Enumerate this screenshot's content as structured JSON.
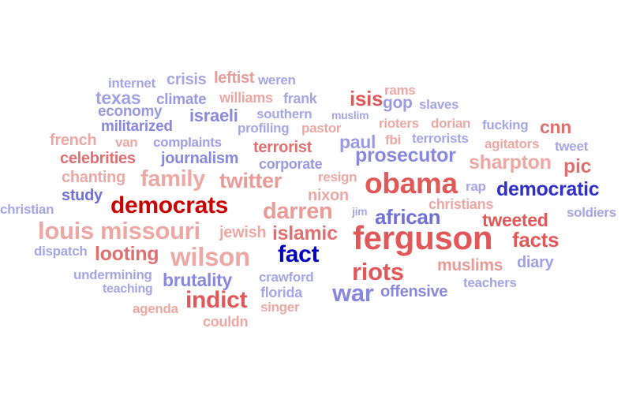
{
  "title": "",
  "colors": {
    "red_strong": "#c80000",
    "red_medium": "#e05858",
    "red_light": "#eda8a4",
    "blue_strong": "#0000c0",
    "blue_medium": "#5a5ad6",
    "blue_light": "#a6a6e6"
  },
  "words": [
    {
      "text": "internet",
      "color": "#a6a6e6"
    },
    {
      "text": "crisis",
      "color": "#a6a6e6"
    },
    {
      "text": "leftist",
      "color": "#e89c98"
    },
    {
      "text": "weren",
      "color": "#a6a6e6"
    },
    {
      "text": "rams",
      "color": "#eda8a4"
    },
    {
      "text": "texas",
      "color": "#a0a0e4"
    },
    {
      "text": "climate",
      "color": "#9a9ae0"
    },
    {
      "text": "williams",
      "color": "#eda8a4"
    },
    {
      "text": "frank",
      "color": "#a6a6e6"
    },
    {
      "text": "isis",
      "color": "#e05858"
    },
    {
      "text": "gop",
      "color": "#9a9ae0"
    },
    {
      "text": "slaves",
      "color": "#a6a6e6"
    },
    {
      "text": "economy",
      "color": "#9a9ae0"
    },
    {
      "text": "israeli",
      "color": "#8888dc"
    },
    {
      "text": "southern",
      "color": "#a6a6e6"
    },
    {
      "text": "muslim",
      "color": "#a6a6e6"
    },
    {
      "text": "militarized",
      "color": "#8888dc"
    },
    {
      "text": "profiling",
      "color": "#a6a6e6"
    },
    {
      "text": "pastor",
      "color": "#eda8a4"
    },
    {
      "text": "rioters",
      "color": "#eda8a4"
    },
    {
      "text": "dorian",
      "color": "#eda8a4"
    },
    {
      "text": "fucking",
      "color": "#a6a6e6"
    },
    {
      "text": "cnn",
      "color": "#e07070"
    },
    {
      "text": "french",
      "color": "#eda8a4"
    },
    {
      "text": "van",
      "color": "#eda8a4"
    },
    {
      "text": "complaints",
      "color": "#a0a0e4"
    },
    {
      "text": "terrorist",
      "color": "#e07070"
    },
    {
      "text": "paul",
      "color": "#9a9ae0"
    },
    {
      "text": "fbi",
      "color": "#eda8a4"
    },
    {
      "text": "terrorists",
      "color": "#a6a6e6"
    },
    {
      "text": "agitators",
      "color": "#eda8a4"
    },
    {
      "text": "tweet",
      "color": "#a6a6e6"
    },
    {
      "text": "celebrities",
      "color": "#e07070"
    },
    {
      "text": "journalism",
      "color": "#8888dc"
    },
    {
      "text": "corporate",
      "color": "#9a9ae0"
    },
    {
      "text": "prosecutor",
      "color": "#8888dc"
    },
    {
      "text": "sharpton",
      "color": "#eda8a4"
    },
    {
      "text": "pic",
      "color": "#e07070"
    },
    {
      "text": "chanting",
      "color": "#eda8a4"
    },
    {
      "text": "family",
      "color": "#eda8a4"
    },
    {
      "text": "twitter",
      "color": "#e89c98"
    },
    {
      "text": "resign",
      "color": "#eda8a4"
    },
    {
      "text": "obama",
      "color": "#e05858"
    },
    {
      "text": "rap",
      "color": "#a6a6e6"
    },
    {
      "text": "democratic",
      "color": "#3030c8"
    },
    {
      "text": "study",
      "color": "#7070d6"
    },
    {
      "text": "democrats",
      "color": "#c80000"
    },
    {
      "text": "nixon",
      "color": "#eda8a4"
    },
    {
      "text": "christians",
      "color": "#eda8a4"
    },
    {
      "text": "christian",
      "color": "#a6a6e6"
    },
    {
      "text": "darren",
      "color": "#e89c98"
    },
    {
      "text": "jim",
      "color": "#a6a6e6"
    },
    {
      "text": "african",
      "color": "#7070d6"
    },
    {
      "text": "tweeted",
      "color": "#e05858"
    },
    {
      "text": "soldiers",
      "color": "#a6a6e6"
    },
    {
      "text": "louis",
      "color": "#eda8a4"
    },
    {
      "text": "missouri",
      "color": "#eda8a4"
    },
    {
      "text": "jewish",
      "color": "#eda8a4"
    },
    {
      "text": "islamic",
      "color": "#e07070"
    },
    {
      "text": "ferguson",
      "color": "#e05858"
    },
    {
      "text": "facts",
      "color": "#e05858"
    },
    {
      "text": "dispatch",
      "color": "#a6a6e6"
    },
    {
      "text": "looting",
      "color": "#e07070"
    },
    {
      "text": "wilson",
      "color": "#eda8a4"
    },
    {
      "text": "fact",
      "color": "#0000c0"
    },
    {
      "text": "muslims",
      "color": "#e89c98"
    },
    {
      "text": "diary",
      "color": "#a0a0e4"
    },
    {
      "text": "riots",
      "color": "#e05858"
    },
    {
      "text": "undermining",
      "color": "#a6a6e6"
    },
    {
      "text": "brutality",
      "color": "#8888dc"
    },
    {
      "text": "crawford",
      "color": "#a6a6e6"
    },
    {
      "text": "teachers",
      "color": "#a6a6e6"
    },
    {
      "text": "teaching",
      "color": "#a6a6e6"
    },
    {
      "text": "indict",
      "color": "#e05858"
    },
    {
      "text": "florida",
      "color": "#a6a6e6"
    },
    {
      "text": "war",
      "color": "#8888dc"
    },
    {
      "text": "offensive",
      "color": "#8888dc"
    },
    {
      "text": "agenda",
      "color": "#eda8a4"
    },
    {
      "text": "singer",
      "color": "#eda8a4"
    },
    {
      "text": "couldn",
      "color": "#eda8a4"
    }
  ]
}
